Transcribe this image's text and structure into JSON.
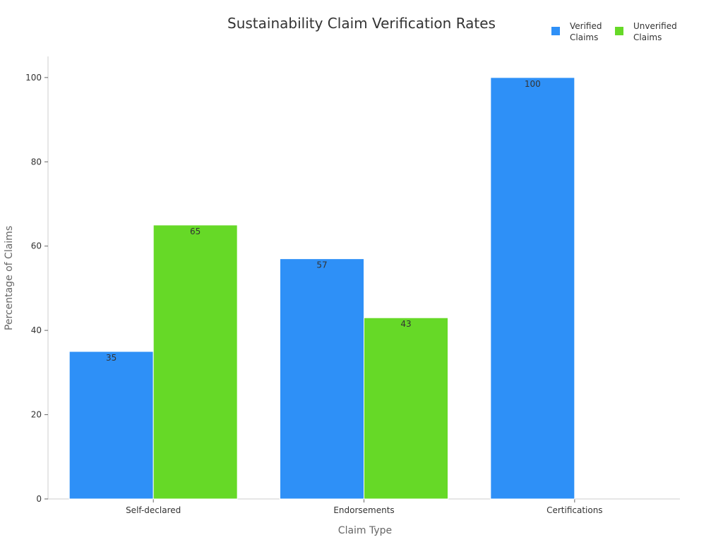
{
  "chart_data": {
    "type": "bar",
    "title": "Sustainability Claim Verification Rates",
    "xlabel": "Claim Type",
    "ylabel": "Percentage of Claims",
    "categories": [
      "Self-declared",
      "Endorsements",
      "Certifications"
    ],
    "series": [
      {
        "name": "Verified Claims",
        "values": [
          35,
          57,
          100
        ],
        "color": "#2e90f7"
      },
      {
        "name": "Unverified Claims",
        "values": [
          65,
          43,
          0
        ],
        "color": "#66d927"
      }
    ],
    "ylim": [
      0,
      105
    ],
    "yticks": [
      0,
      20,
      40,
      60,
      80,
      100
    ],
    "grid": false,
    "legend_position": "top-right"
  }
}
